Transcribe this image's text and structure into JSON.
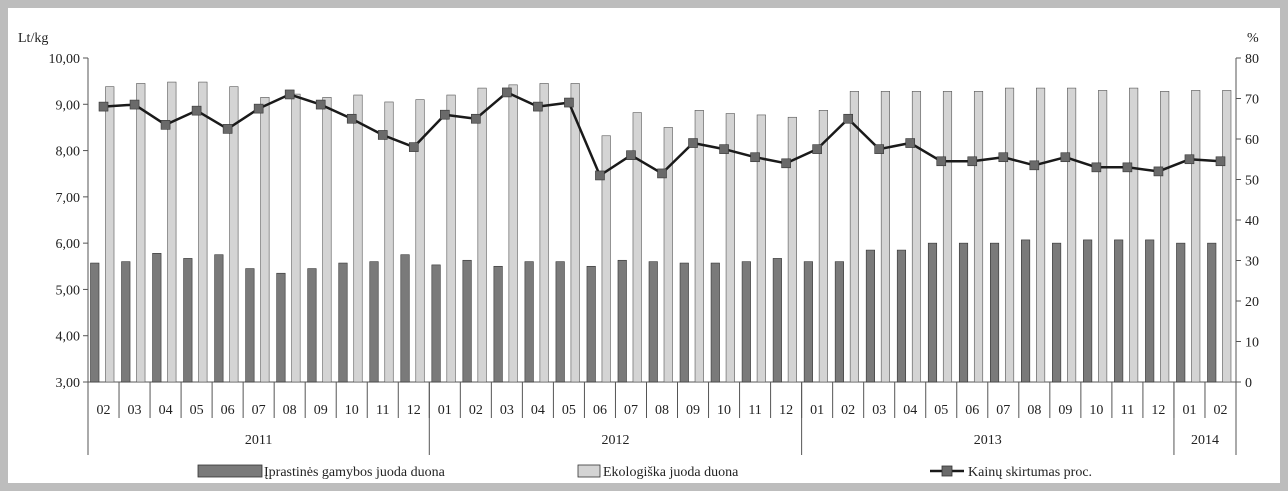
{
  "chart_data": {
    "type": "bar",
    "left_axis_label": "Lt/kg",
    "right_axis_label": "%",
    "ylim": [
      3,
      10
    ],
    "y2lim": [
      0,
      80
    ],
    "left_ticks": [
      "3,00",
      "4,00",
      "5,00",
      "6,00",
      "7,00",
      "8,00",
      "9,00",
      "10,00"
    ],
    "right_ticks": [
      "0",
      "10",
      "20",
      "30",
      "40",
      "50",
      "60",
      "70",
      "80"
    ],
    "grid": false,
    "legend_position": "bottom",
    "months": [
      "02",
      "03",
      "04",
      "05",
      "06",
      "07",
      "08",
      "09",
      "10",
      "11",
      "12",
      "01",
      "02",
      "03",
      "04",
      "05",
      "06",
      "07",
      "08",
      "09",
      "10",
      "11",
      "12",
      "01",
      "02",
      "03",
      "04",
      "05",
      "06",
      "07",
      "08",
      "09",
      "10",
      "11",
      "12",
      "01",
      "02"
    ],
    "years": [
      {
        "label": "2011",
        "count": 11
      },
      {
        "label": "2012",
        "count": 12
      },
      {
        "label": "2013",
        "count": 12
      },
      {
        "label": "2014",
        "count": 2
      }
    ],
    "series": [
      {
        "name": "Įprastinės gamybos juoda duona",
        "kind": "bar",
        "axis": "left",
        "color": "#7a7a7a",
        "values": [
          5.57,
          5.6,
          5.78,
          5.67,
          5.75,
          5.45,
          5.35,
          5.45,
          5.57,
          5.6,
          5.75,
          5.53,
          5.63,
          5.5,
          5.6,
          5.6,
          5.5,
          5.63,
          5.6,
          5.57,
          5.57,
          5.6,
          5.67,
          5.6,
          5.6,
          5.85,
          5.85,
          6.0,
          6.0,
          6.0,
          6.07,
          6.0,
          6.07,
          6.07,
          6.07,
          6.0,
          6.0
        ]
      },
      {
        "name": "Ekologiška juoda duona",
        "kind": "bar",
        "axis": "left",
        "color": "#d4d4d4",
        "values": [
          9.38,
          9.45,
          9.48,
          9.48,
          9.38,
          9.15,
          9.22,
          9.15,
          9.2,
          9.05,
          9.1,
          9.2,
          9.35,
          9.42,
          9.45,
          9.45,
          8.32,
          8.82,
          8.5,
          8.87,
          8.8,
          8.77,
          8.72,
          8.87,
          9.28,
          9.28,
          9.28,
          9.28,
          9.28,
          9.35,
          9.35,
          9.35,
          9.3,
          9.35,
          9.28,
          9.3,
          9.3
        ]
      },
      {
        "name": "Kainų skirtumas proc.",
        "kind": "line",
        "axis": "right",
        "color": "#1a1a1a",
        "marker_color": "#6a6a6a",
        "values": [
          68,
          68.5,
          63.5,
          67,
          62.5,
          67.5,
          71,
          68.5,
          65,
          61,
          58,
          66,
          65,
          71.5,
          68,
          69,
          51,
          56,
          51.5,
          59,
          57.5,
          55.5,
          54,
          57.5,
          65,
          57.5,
          59,
          54.5,
          54.5,
          55.5,
          53.5,
          55.5,
          53,
          53,
          52,
          55,
          54.5
        ]
      }
    ]
  }
}
